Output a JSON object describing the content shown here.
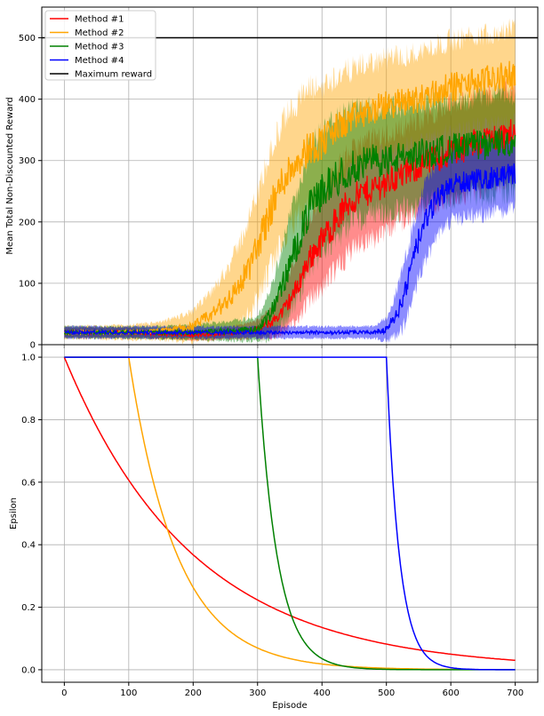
{
  "chart_data": [
    {
      "type": "line",
      "title": "",
      "xlabel": "",
      "ylabel": "Mean Total Non-Discounted Reward",
      "xlim": [
        -35,
        735
      ],
      "ylim": [
        0,
        550
      ],
      "xticks": [
        0,
        100,
        200,
        300,
        400,
        500,
        600,
        700
      ],
      "yticks": [
        0,
        100,
        200,
        300,
        400,
        500
      ],
      "grid": true,
      "legend_position": "top-left",
      "legend": [
        "Method #1",
        "Method #2",
        "Method #3",
        "Method #4",
        "Maximum reward"
      ],
      "series": [
        {
          "name": "Method #1",
          "color": "#ff0000",
          "x": [
            0,
            100,
            200,
            250,
            300,
            320,
            340,
            360,
            380,
            400,
            420,
            440,
            460,
            480,
            500,
            520,
            540,
            560,
            580,
            600,
            620,
            640,
            660,
            680,
            700
          ],
          "mean": [
            20,
            20,
            15,
            18,
            25,
            35,
            55,
            90,
            140,
            170,
            200,
            230,
            245,
            255,
            265,
            275,
            285,
            295,
            305,
            315,
            320,
            330,
            335,
            340,
            345
          ],
          "spread": [
            8,
            8,
            8,
            10,
            15,
            25,
            40,
            55,
            70,
            80,
            85,
            85,
            85,
            85,
            80,
            80,
            80,
            80,
            80,
            80,
            80,
            80,
            80,
            80,
            80
          ]
        },
        {
          "name": "Method #2",
          "color": "#ffa500",
          "x": [
            0,
            100,
            150,
            200,
            230,
            260,
            280,
            300,
            320,
            340,
            360,
            380,
            400,
            420,
            450,
            500,
            550,
            600,
            650,
            700
          ],
          "mean": [
            20,
            20,
            22,
            30,
            50,
            80,
            110,
            160,
            220,
            270,
            300,
            320,
            330,
            350,
            370,
            390,
            400,
            420,
            430,
            440
          ],
          "spread": [
            10,
            12,
            15,
            25,
            40,
            60,
            80,
            90,
            100,
            100,
            100,
            100,
            95,
            90,
            85,
            80,
            80,
            80,
            80,
            80
          ]
        },
        {
          "name": "Method #3",
          "color": "#008000",
          "x": [
            0,
            100,
            200,
            300,
            320,
            340,
            360,
            380,
            400,
            420,
            450,
            480,
            500,
            550,
            600,
            650,
            700
          ],
          "mean": [
            20,
            20,
            20,
            25,
            50,
            100,
            160,
            220,
            250,
            270,
            290,
            300,
            300,
            310,
            320,
            325,
            330
          ],
          "spread": [
            10,
            10,
            12,
            20,
            40,
            70,
            90,
            100,
            100,
            100,
            95,
            90,
            90,
            85,
            85,
            85,
            85
          ]
        },
        {
          "name": "Method #4",
          "color": "#0000ff",
          "x": [
            0,
            100,
            200,
            300,
            400,
            480,
            500,
            510,
            520,
            530,
            540,
            550,
            560,
            570,
            580,
            600,
            620,
            650,
            680,
            700
          ],
          "mean": [
            20,
            20,
            20,
            20,
            20,
            20,
            25,
            40,
            60,
            90,
            130,
            170,
            200,
            220,
            240,
            260,
            265,
            270,
            275,
            280
          ],
          "spread": [
            10,
            10,
            10,
            10,
            10,
            10,
            20,
            30,
            45,
            55,
            60,
            65,
            65,
            65,
            60,
            60,
            60,
            60,
            60,
            60
          ]
        },
        {
          "name": "Maximum reward",
          "color": "#000000",
          "x": [
            -35,
            735
          ],
          "mean": [
            500,
            500
          ]
        }
      ]
    },
    {
      "type": "line",
      "title": "",
      "xlabel": "Episode",
      "ylabel": "Epsilon",
      "xlim": [
        -35,
        735
      ],
      "ylim": [
        -0.04,
        1.04
      ],
      "xticks": [
        0,
        100,
        200,
        300,
        400,
        500,
        600,
        700
      ],
      "yticks": [
        0.0,
        0.2,
        0.4,
        0.6,
        0.8,
        1.0
      ],
      "grid": true,
      "series": [
        {
          "color": "#ff0000",
          "decay_start": 0,
          "tau": 200,
          "x": [
            0,
            700
          ]
        },
        {
          "color": "#ffa500",
          "decay_start": 100,
          "tau": 75,
          "x": [
            0,
            700
          ]
        },
        {
          "color": "#008000",
          "decay_start": 300,
          "tau": 30,
          "x": [
            0,
            700
          ]
        },
        {
          "color": "#0000ff",
          "decay_start": 500,
          "tau": 20,
          "x": [
            0,
            700
          ]
        }
      ]
    }
  ]
}
